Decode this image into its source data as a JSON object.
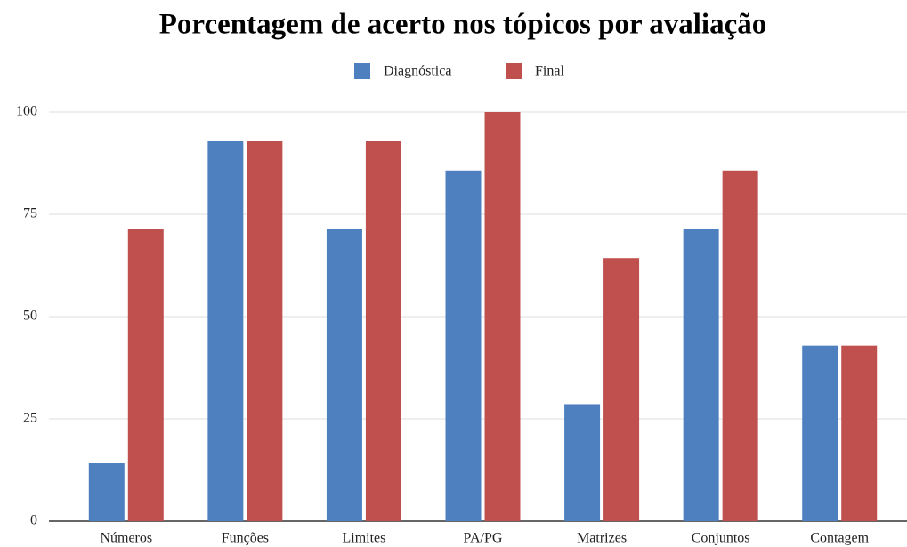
{
  "chart_data": {
    "type": "bar",
    "title": "Porcentagem de acerto nos tópicos por avaliação",
    "categories": [
      "Números",
      "Funções",
      "Limites",
      "PA/PG",
      "Matrizes",
      "Conjuntos",
      "Contagem"
    ],
    "series": [
      {
        "name": "Diagnóstica",
        "color": "#4e80c0",
        "values": [
          14.3,
          92.9,
          71.4,
          85.7,
          28.6,
          71.4,
          42.9
        ]
      },
      {
        "name": "Final",
        "color": "#c0504d",
        "values": [
          71.4,
          92.9,
          92.9,
          100,
          64.3,
          85.7,
          42.9
        ]
      }
    ],
    "ylim": [
      0,
      100
    ],
    "yticks": [
      0,
      25,
      50,
      75,
      100
    ],
    "grid": true,
    "legend": "top"
  }
}
